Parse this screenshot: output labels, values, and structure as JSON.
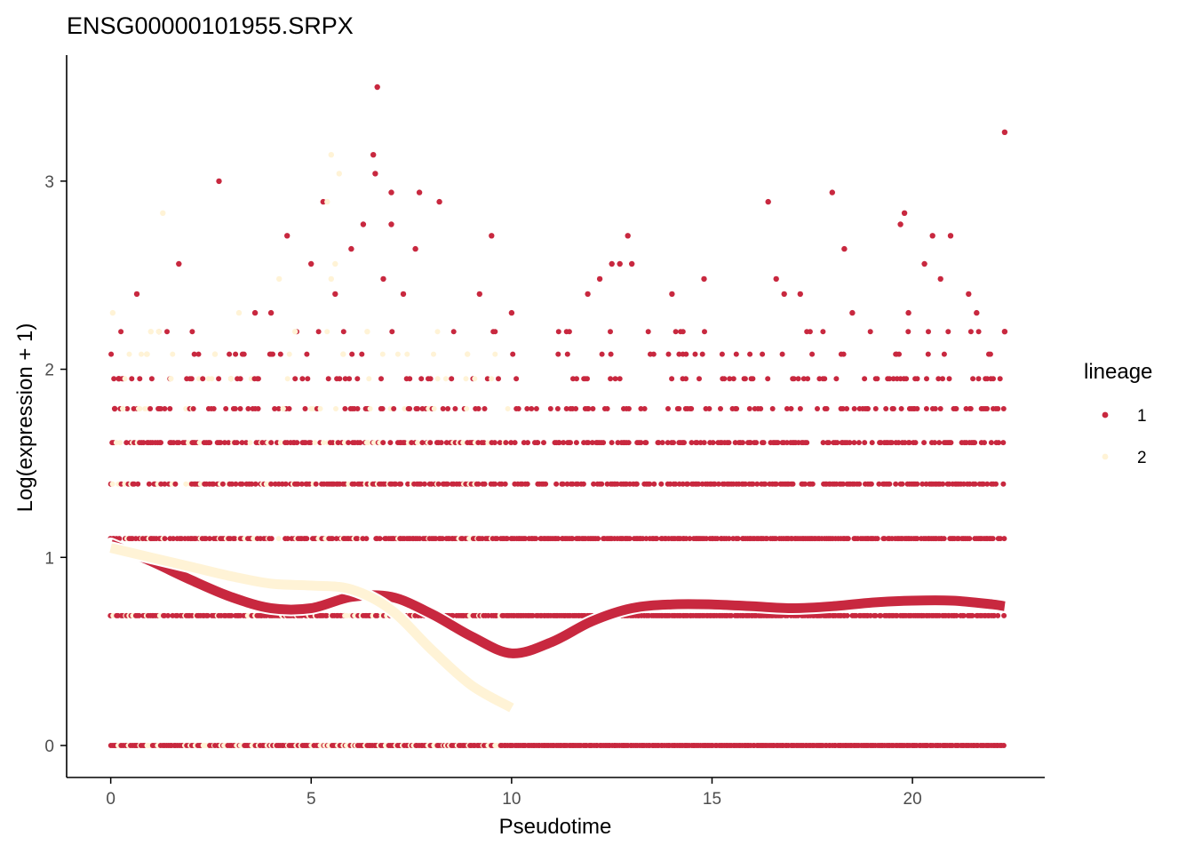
{
  "chart_data": {
    "type": "scatter",
    "title": "ENSG00000101955.SRPX",
    "xlabel": "Pseudotime",
    "ylabel": "Log(expression + 1)",
    "xlim": [
      -1.1,
      23.3
    ],
    "ylim": [
      -0.17,
      3.67
    ],
    "xticks": [
      0,
      5,
      10,
      15,
      20
    ],
    "yticks": [
      0,
      1,
      2,
      3
    ],
    "grid": false,
    "legend": {
      "title": "lineage",
      "position": "right",
      "entries": [
        "1",
        "2"
      ]
    },
    "levels": [
      0,
      0.69,
      1.1,
      1.39,
      1.61,
      1.79,
      1.95,
      2.08,
      2.2,
      2.3,
      2.4,
      2.48,
      2.56,
      2.64,
      2.71,
      2.77,
      2.83,
      2.89,
      2.94,
      3.0
    ],
    "series": [
      {
        "name": "1",
        "color": "#C8283F",
        "points": [
          [
            0.1,
            1.79
          ],
          [
            0.2,
            1.95
          ],
          [
            0.65,
            2.4
          ],
          [
            1.7,
            2.56
          ],
          [
            2.7,
            3.0
          ],
          [
            4.4,
            2.71
          ],
          [
            5.0,
            2.56
          ],
          [
            5.3,
            2.89
          ],
          [
            6.0,
            2.64
          ],
          [
            6.3,
            2.77
          ],
          [
            6.55,
            3.14
          ],
          [
            6.6,
            3.04
          ],
          [
            6.65,
            3.5
          ],
          [
            7.0,
            2.94
          ],
          [
            7.0,
            2.77
          ],
          [
            7.6,
            2.64
          ],
          [
            7.7,
            2.94
          ],
          [
            8.2,
            2.89
          ],
          [
            9.5,
            2.71
          ],
          [
            12.5,
            2.56
          ],
          [
            12.7,
            2.56
          ],
          [
            12.9,
            2.71
          ],
          [
            14.8,
            2.48
          ],
          [
            16.4,
            2.89
          ],
          [
            16.6,
            2.48
          ],
          [
            18.0,
            2.94
          ],
          [
            18.3,
            2.64
          ],
          [
            19.7,
            2.77
          ],
          [
            19.8,
            2.83
          ],
          [
            20.3,
            2.56
          ],
          [
            20.5,
            2.71
          ],
          [
            20.7,
            2.48
          ],
          [
            20.95,
            2.71
          ],
          [
            21.4,
            2.4
          ],
          [
            22.3,
            3.26
          ],
          [
            3.6,
            2.3
          ],
          [
            4.0,
            2.3
          ],
          [
            5.6,
            2.4
          ],
          [
            6.8,
            2.48
          ],
          [
            7.3,
            2.4
          ],
          [
            9.2,
            2.4
          ],
          [
            10.0,
            2.3
          ],
          [
            11.9,
            2.4
          ],
          [
            12.2,
            2.48
          ],
          [
            13.0,
            2.56
          ],
          [
            14.0,
            2.4
          ],
          [
            16.8,
            2.4
          ],
          [
            17.2,
            2.4
          ],
          [
            18.5,
            2.3
          ],
          [
            19.9,
            2.3
          ],
          [
            21.6,
            2.3
          ],
          [
            22.3,
            2.2
          ]
        ],
        "curve": [
          [
            0,
            1.07
          ],
          [
            1,
            0.98
          ],
          [
            2,
            0.88
          ],
          [
            3,
            0.79
          ],
          [
            4,
            0.73
          ],
          [
            5,
            0.73
          ],
          [
            6,
            0.79
          ],
          [
            7,
            0.79
          ],
          [
            8,
            0.7
          ],
          [
            9,
            0.58
          ],
          [
            10,
            0.49
          ],
          [
            11,
            0.55
          ],
          [
            12,
            0.66
          ],
          [
            13,
            0.73
          ],
          [
            14,
            0.75
          ],
          [
            15,
            0.75
          ],
          [
            16,
            0.74
          ],
          [
            17,
            0.73
          ],
          [
            18,
            0.74
          ],
          [
            19,
            0.76
          ],
          [
            20,
            0.77
          ],
          [
            21,
            0.77
          ],
          [
            22,
            0.75
          ],
          [
            22.3,
            0.74
          ]
        ]
      },
      {
        "name": "2",
        "color": "#FFF3D6",
        "points": [
          [
            0.05,
            2.3
          ],
          [
            1.3,
            2.83
          ],
          [
            5.5,
            3.14
          ],
          [
            5.7,
            3.04
          ],
          [
            5.4,
            2.89
          ],
          [
            4.2,
            2.48
          ],
          [
            5.5,
            2.48
          ],
          [
            5.6,
            2.56
          ],
          [
            1.0,
            2.2
          ],
          [
            1.2,
            2.2
          ],
          [
            3.2,
            2.3
          ],
          [
            4.6,
            2.2
          ],
          [
            6.4,
            2.2
          ],
          [
            0.9,
            2.08
          ],
          [
            1.5,
            1.95
          ],
          [
            2.6,
            2.08
          ],
          [
            3.0,
            1.95
          ],
          [
            5.8,
            2.08
          ],
          [
            8.9,
            2.08
          ],
          [
            0.3,
            1.79
          ],
          [
            0.7,
            1.79
          ],
          [
            4.3,
            1.79
          ]
        ],
        "curve": [
          [
            0,
            1.05
          ],
          [
            1,
            1.0
          ],
          [
            2,
            0.95
          ],
          [
            3,
            0.9
          ],
          [
            4,
            0.86
          ],
          [
            5,
            0.85
          ],
          [
            6,
            0.83
          ],
          [
            7,
            0.72
          ],
          [
            8,
            0.51
          ],
          [
            9,
            0.32
          ],
          [
            10,
            0.2
          ]
        ]
      }
    ]
  }
}
